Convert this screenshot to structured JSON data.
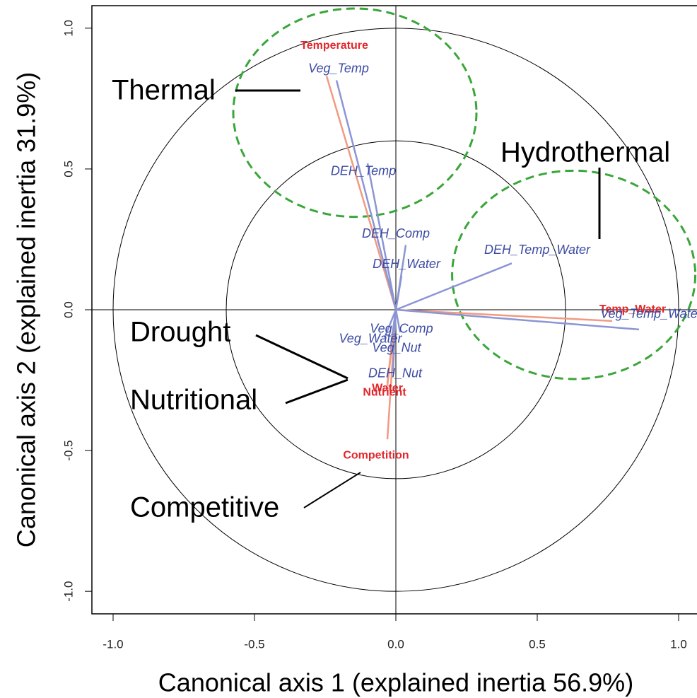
{
  "chart_data": {
    "type": "biplot",
    "xlabel": "Canonical axis 1 (explained inertia 56.9%)",
    "ylabel": "Canonical axis 2 (explained inertia 31.9%)",
    "xlim": [
      -1.075,
      1.065
    ],
    "ylim": [
      -1.08,
      1.08
    ],
    "xticks": [
      {
        "value": -1,
        "label": "-1.0"
      },
      -0.5,
      {
        "value": 0,
        "label": "0.0"
      },
      0.5,
      {
        "value": 1,
        "label": "1.0"
      }
    ],
    "yticks": [
      {
        "value": -1,
        "label": "-1.0"
      },
      -0.5,
      {
        "value": 0,
        "label": "0.0"
      },
      0.5,
      {
        "value": 1,
        "label": "1.0"
      }
    ],
    "circles": [
      1,
      0.6
    ],
    "groups": [
      {
        "color": "#f19a82",
        "label_color": "#e3262b",
        "vectors": [
          {
            "label": "Temperature",
            "x": -0.245,
            "y": 0.83
          },
          {
            "label": "Temp_Water",
            "x": 0.765,
            "y": -0.04
          },
          {
            "label": "Competition",
            "x": -0.03,
            "y": -0.46
          },
          {
            "label": "Water",
            "x": -0.03,
            "y": -0.26
          },
          {
            "label": "Nutrient",
            "x": -0.03,
            "y": -0.27
          }
        ]
      },
      {
        "color": "#8c95d4",
        "label_color": "#3b4aa3",
        "vectors": [
          {
            "label": "Veg_Temp",
            "x": -0.21,
            "y": 0.815
          },
          {
            "label": "DEH_Temp",
            "x": -0.1,
            "y": 0.52
          },
          {
            "label": "DEH_Comp",
            "x": 0.035,
            "y": 0.23
          },
          {
            "label": "DEH_Water",
            "x": 0.02,
            "y": 0.12
          },
          {
            "label": "DEH_Temp_Water",
            "x": 0.41,
            "y": 0.165
          },
          {
            "label": "Veg_Temp_Water",
            "x": 0.86,
            "y": -0.07
          },
          {
            "label": "Veg_Comp",
            "x": 0.015,
            "y": -0.08
          },
          {
            "label": "Veg_Water",
            "x": -0.04,
            "y": -0.1
          },
          {
            "label": "Veg_Nut",
            "x": -0.02,
            "y": -0.14
          },
          {
            "label": "DEH_Nut",
            "x": -0.01,
            "y": -0.22
          }
        ]
      }
    ],
    "clusters": [
      {
        "label": "Thermal",
        "x": -0.145,
        "y": 0.7,
        "rx": 0.43,
        "ry": 0.37,
        "color": "#3aa63a"
      },
      {
        "label": "Hydrothermal",
        "x": 0.629,
        "y": 0.124,
        "rx": 0.43,
        "ry": 0.37,
        "color": "#3aa63a"
      }
    ],
    "annotations": [
      "Drought",
      "Nutritional",
      "Competitive"
    ]
  }
}
